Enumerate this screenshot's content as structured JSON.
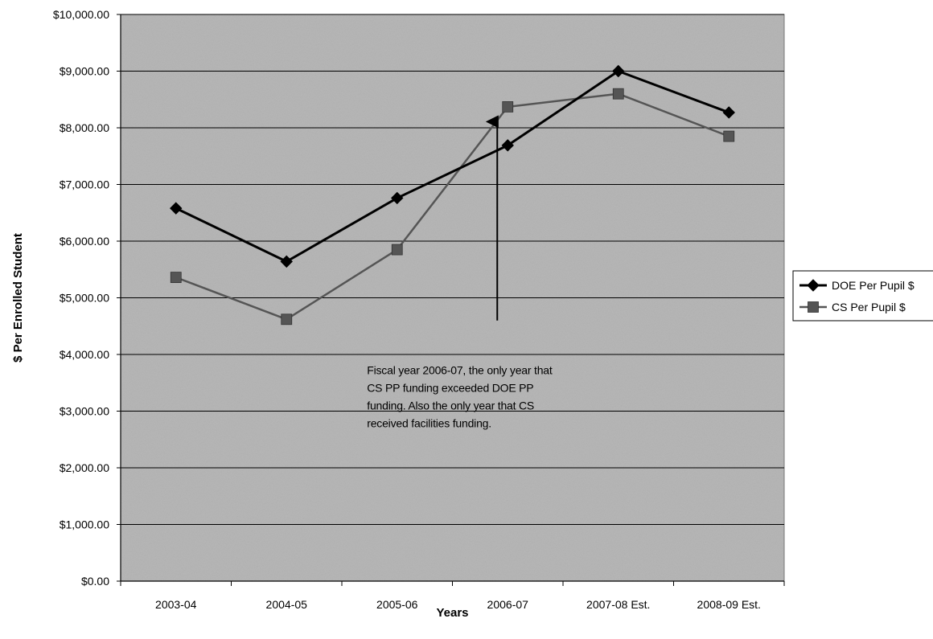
{
  "chart_data": {
    "type": "line",
    "title": "",
    "xlabel": "Years",
    "ylabel": "$ Per Enrolled Student",
    "categories": [
      "2003-04",
      "2004-05",
      "2005-06",
      "2006-07",
      "2007-08 Est.",
      "2008-09 Est."
    ],
    "ylim": [
      0,
      10000
    ],
    "ytick_step": 1000,
    "ytick_labels": [
      "$0.00",
      "$1,000.00",
      "$2,000.00",
      "$3,000.00",
      "$4,000.00",
      "$5,000.00",
      "$6,000.00",
      "$7,000.00",
      "$8,000.00",
      "$9,000.00",
      "$10,000.00"
    ],
    "grid": true,
    "legend_position": "right",
    "series": [
      {
        "name": "DOE Per Pupil $",
        "values": [
          6580,
          5640,
          6760,
          7690,
          9000,
          8270
        ],
        "color": "#000000",
        "marker": "diamond"
      },
      {
        "name": "CS Per Pupil $",
        "values": [
          5360,
          4620,
          5850,
          8370,
          8600,
          7850
        ],
        "color": "#555555",
        "marker": "square"
      }
    ],
    "annotations": [
      {
        "text_lines": [
          "Fiscal year 2006-07, the only year that",
          "CS PP funding exceeded DOE PP",
          "funding. Also the only year that CS",
          "received facilities funding."
        ],
        "category": "2006-07",
        "arrow_from_value": 4600,
        "arrow_to_value": 8250
      }
    ],
    "plot_background": "#b3b3b3",
    "grid_color": "#000000"
  }
}
